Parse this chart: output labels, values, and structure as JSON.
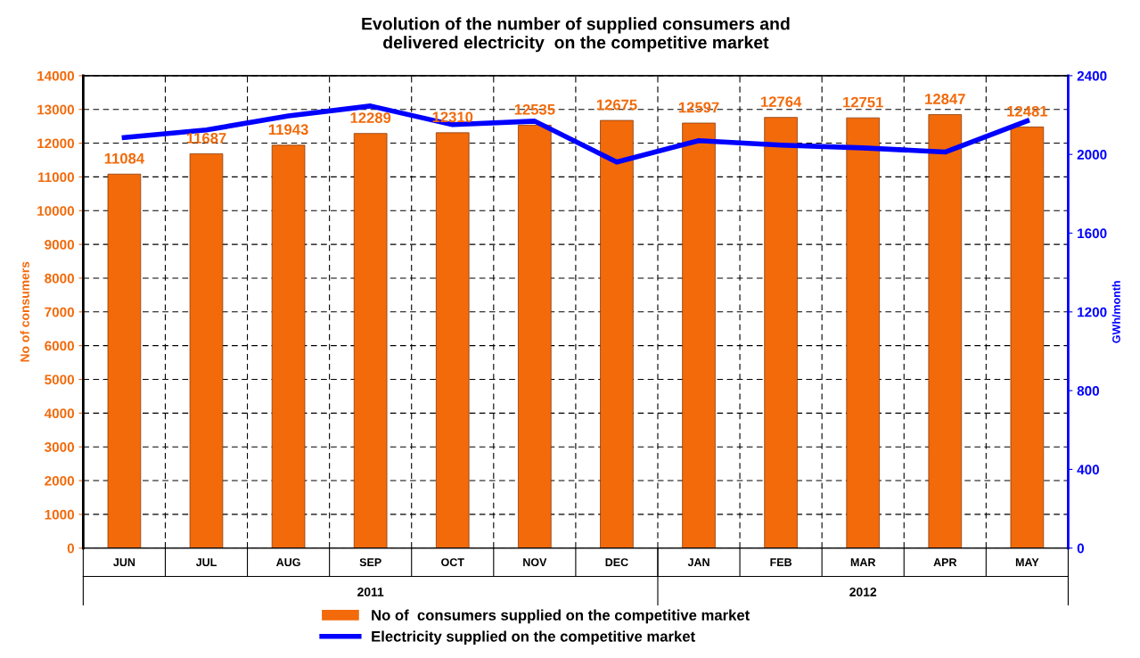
{
  "chart_data": {
    "type": "bar",
    "title": "Evolution of the number of supplied consumers and\ndelivered electricity  on the competitive market",
    "categories": [
      "JUN",
      "JUL",
      "AUG",
      "SEP",
      "OCT",
      "NOV",
      "DEC",
      "JAN",
      "FEB",
      "MAR",
      "APR",
      "MAY"
    ],
    "series": [
      {
        "name": "No of  consumers supplied on the competitive market",
        "color": "#f26a0a",
        "values": [
          11084,
          11687,
          11943,
          12289,
          12310,
          12535,
          12675,
          12597,
          12764,
          12751,
          12847,
          12481
        ],
        "value_labels": [
          "11084",
          "11687",
          "11943",
          "12289",
          "12310",
          "12535",
          "12675",
          "12597",
          "12764",
          "12751",
          "12847",
          "12481"
        ]
      },
      {
        "name": "Electricity supplied on the competitive market",
        "type": "line",
        "axis": "y2",
        "color": "#0000ff",
        "values": [
          2086,
          2124,
          2196,
          2246,
          2151,
          2169,
          1961,
          2070,
          2047,
          2033,
          2012,
          2170
        ]
      }
    ],
    "ylabel": "No of consumers",
    "y2label": "GWh/month",
    "ylim": [
      0,
      14000
    ],
    "yticks": [
      0,
      1000,
      2000,
      3000,
      4000,
      5000,
      6000,
      7000,
      8000,
      9000,
      10000,
      11000,
      12000,
      13000,
      14000
    ],
    "y2lim": [
      0,
      2400
    ],
    "y2ticks": [
      0,
      400,
      800,
      1200,
      1600,
      2000,
      2400
    ],
    "annotations": [
      "2011",
      "2012"
    ],
    "grid": true,
    "legend": "bottom",
    "line_style": "solid",
    "marker": "none"
  }
}
